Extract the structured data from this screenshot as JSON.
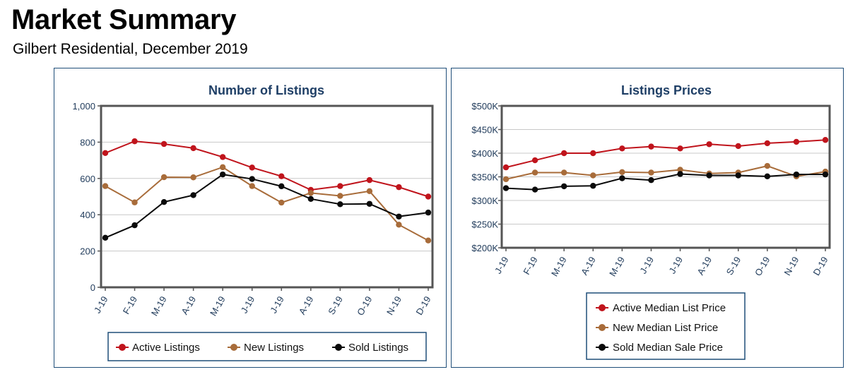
{
  "header": {
    "title": "Market Summary",
    "subtitle": "Gilbert Residential, December 2019"
  },
  "colors": {
    "active": "#c0141c",
    "new": "#a86c3a",
    "sold": "#0a0a0a",
    "axis": "#555555",
    "title": "#1f3f66",
    "panel_border": "#1f4e79"
  },
  "chart_data": [
    {
      "type": "line",
      "title": "Number of Listings",
      "categories": [
        "J-19",
        "F-19",
        "M-19",
        "A-19",
        "M-19",
        "J-19",
        "J-19",
        "A-19",
        "S-19",
        "O-19",
        "N-19",
        "D-19"
      ],
      "ylim": [
        0,
        1000
      ],
      "yticks": [
        0,
        200,
        400,
        600,
        800,
        1000
      ],
      "ytick_labels": [
        "0",
        "200",
        "400",
        "600",
        "800",
        "1,000"
      ],
      "grid": true,
      "legend_position": "bottom",
      "series": [
        {
          "name": "Active Listings",
          "color_key": "active",
          "values": [
            740,
            805,
            790,
            767,
            718,
            660,
            612,
            537,
            558,
            591,
            552,
            500
          ]
        },
        {
          "name": "New Listings",
          "color_key": "new",
          "values": [
            558,
            468,
            607,
            606,
            662,
            558,
            467,
            520,
            504,
            530,
            345,
            258
          ]
        },
        {
          "name": "Sold Listings",
          "color_key": "sold",
          "values": [
            273,
            342,
            470,
            508,
            622,
            597,
            557,
            487,
            458,
            460,
            390,
            412
          ]
        }
      ]
    },
    {
      "type": "line",
      "title": "Listings Prices",
      "categories": [
        "J-19",
        "F-19",
        "M-19",
        "A-19",
        "M-19",
        "J-19",
        "J-19",
        "A-19",
        "S-19",
        "O-19",
        "N-19",
        "D-19"
      ],
      "ylim": [
        200000,
        500000
      ],
      "yticks": [
        200000,
        250000,
        300000,
        350000,
        400000,
        450000,
        500000
      ],
      "ytick_labels": [
        "$200K",
        "$250K",
        "$300K",
        "$350K",
        "$400K",
        "$450K",
        "$500K"
      ],
      "grid": true,
      "legend_position": "bottom",
      "series": [
        {
          "name": "Active Median List Price",
          "color_key": "active",
          "values": [
            370000,
            385000,
            400000,
            400000,
            410000,
            414000,
            410000,
            419000,
            415000,
            421000,
            424000,
            428000
          ]
        },
        {
          "name": "New Median List Price",
          "color_key": "new",
          "values": [
            345000,
            359000,
            359000,
            353000,
            360000,
            359000,
            365000,
            357000,
            359000,
            373000,
            351000,
            361000
          ]
        },
        {
          "name": "Sold Median Sale Price",
          "color_key": "sold",
          "values": [
            326000,
            323000,
            330000,
            331000,
            347000,
            343000,
            356000,
            353000,
            353000,
            351000,
            355000,
            355000
          ]
        }
      ]
    }
  ]
}
